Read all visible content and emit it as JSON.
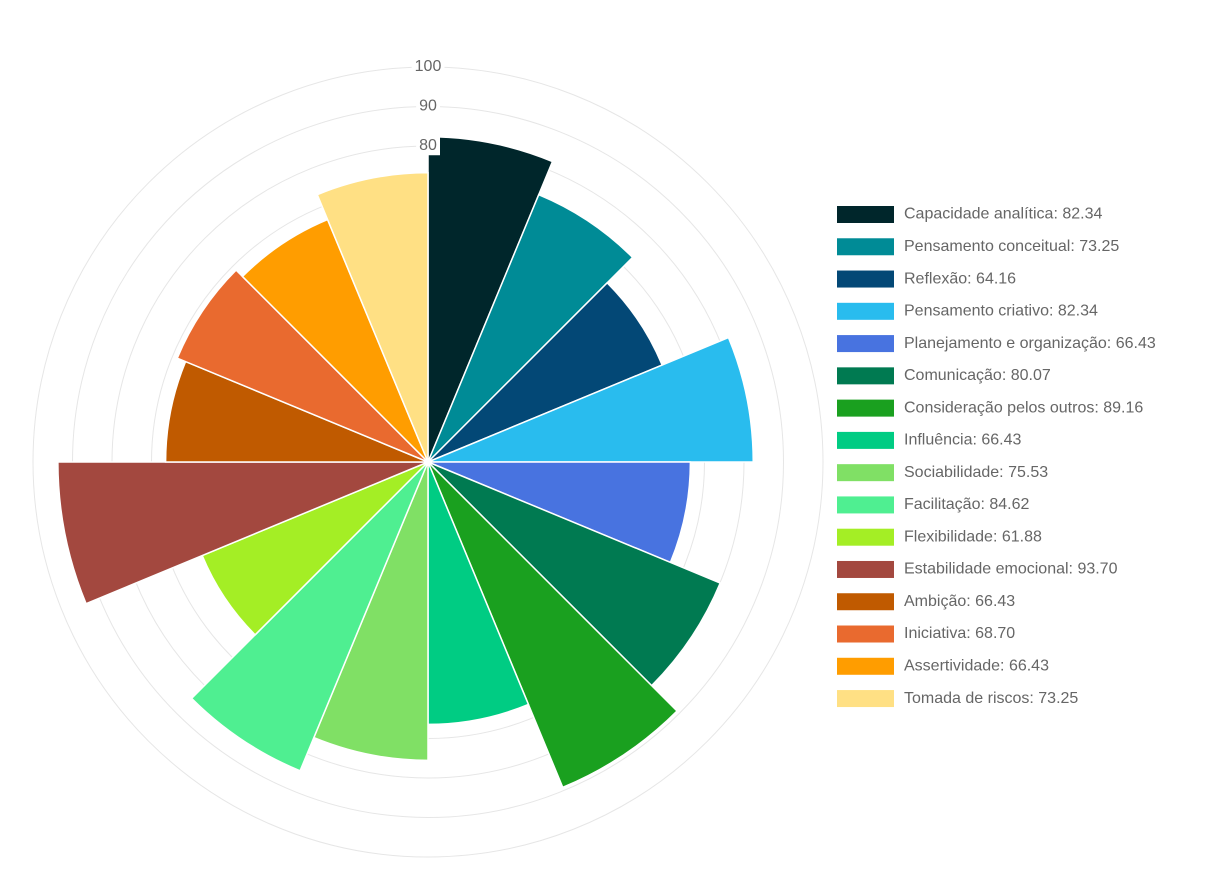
{
  "chart_data": {
    "type": "polarArea",
    "rmin": 0,
    "rmax": 100,
    "ticks": [
      "80",
      "90",
      "100"
    ],
    "tick_values": [
      80,
      90,
      100
    ],
    "grid_step": 10,
    "grid": true,
    "legend_position": "right",
    "start_angle_deg": -90,
    "segments": [
      {
        "label": "Capacidade analítica: 82.34",
        "value": 82.34,
        "color": "#00262b"
      },
      {
        "label": "Pensamento conceitual: 73.25",
        "value": 73.25,
        "color": "#008b96"
      },
      {
        "label": "Reflexão: 64.16",
        "value": 64.16,
        "color": "#034876"
      },
      {
        "label": "Pensamento criativo: 82.34",
        "value": 82.34,
        "color": "#29bcee"
      },
      {
        "label": "Planejamento e organização: 66.43",
        "value": 66.43,
        "color": "#4873e0"
      },
      {
        "label": "Comunicação: 80.07",
        "value": 80.07,
        "color": "#007a51"
      },
      {
        "label": "Consideração pelos outros: 89.16",
        "value": 89.16,
        "color": "#1aa01f"
      },
      {
        "label": "Influência: 66.43",
        "value": 66.43,
        "color": "#00cc83"
      },
      {
        "label": "Sociabilidade: 75.53",
        "value": 75.53,
        "color": "#80e065"
      },
      {
        "label": "Facilitação: 84.62",
        "value": 84.62,
        "color": "#4fef91"
      },
      {
        "label": "Flexibilidade: 61.88",
        "value": 61.88,
        "color": "#a4ee25"
      },
      {
        "label": "Estabilidade emocional: 93.70",
        "value": 93.7,
        "color": "#a3483f"
      },
      {
        "label": "Ambição: 66.43",
        "value": 66.43,
        "color": "#c05a00"
      },
      {
        "label": "Iniciativa: 68.70",
        "value": 68.7,
        "color": "#e96a2f"
      },
      {
        "label": "Assertividade: 66.43",
        "value": 66.43,
        "color": "#ff9d00"
      },
      {
        "label": "Tomada de riscos: 73.25",
        "value": 73.25,
        "color": "#ffe084"
      }
    ]
  }
}
